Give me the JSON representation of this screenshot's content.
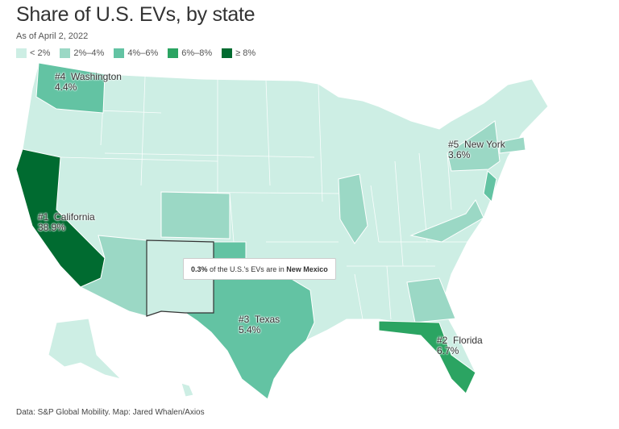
{
  "title": "Share of U.S. EVs, by state",
  "subtitle": "As of April 2, 2022",
  "legend": [
    {
      "label": "< 2%",
      "color": "#cdeee4"
    },
    {
      "label": "2%–4%",
      "color": "#9bd8c5"
    },
    {
      "label": "4%–6%",
      "color": "#63c3a3"
    },
    {
      "label": "6%–8%",
      "color": "#2ba462"
    },
    {
      "label": "≥ 8%",
      "color": "#006b30"
    }
  ],
  "labels": {
    "washington": {
      "rank": "#4",
      "name": "Washington",
      "value": "4.4%"
    },
    "california": {
      "rank": "#1",
      "name": "California",
      "value": "38.9%"
    },
    "texas": {
      "rank": "#3",
      "name": "Texas",
      "value": "5.4%"
    },
    "florida": {
      "rank": "#2",
      "name": "Florida",
      "value": "6.7%"
    },
    "new_york": {
      "rank": "#5",
      "name": "New York",
      "value": "3.6%"
    }
  },
  "tooltip": {
    "value": "0.3%",
    "text": " of the U.S.'s EVs are in ",
    "state": "New Mexico"
  },
  "source": "Data: S&P Global Mobility. Map: Jared Whalen/Axios"
}
